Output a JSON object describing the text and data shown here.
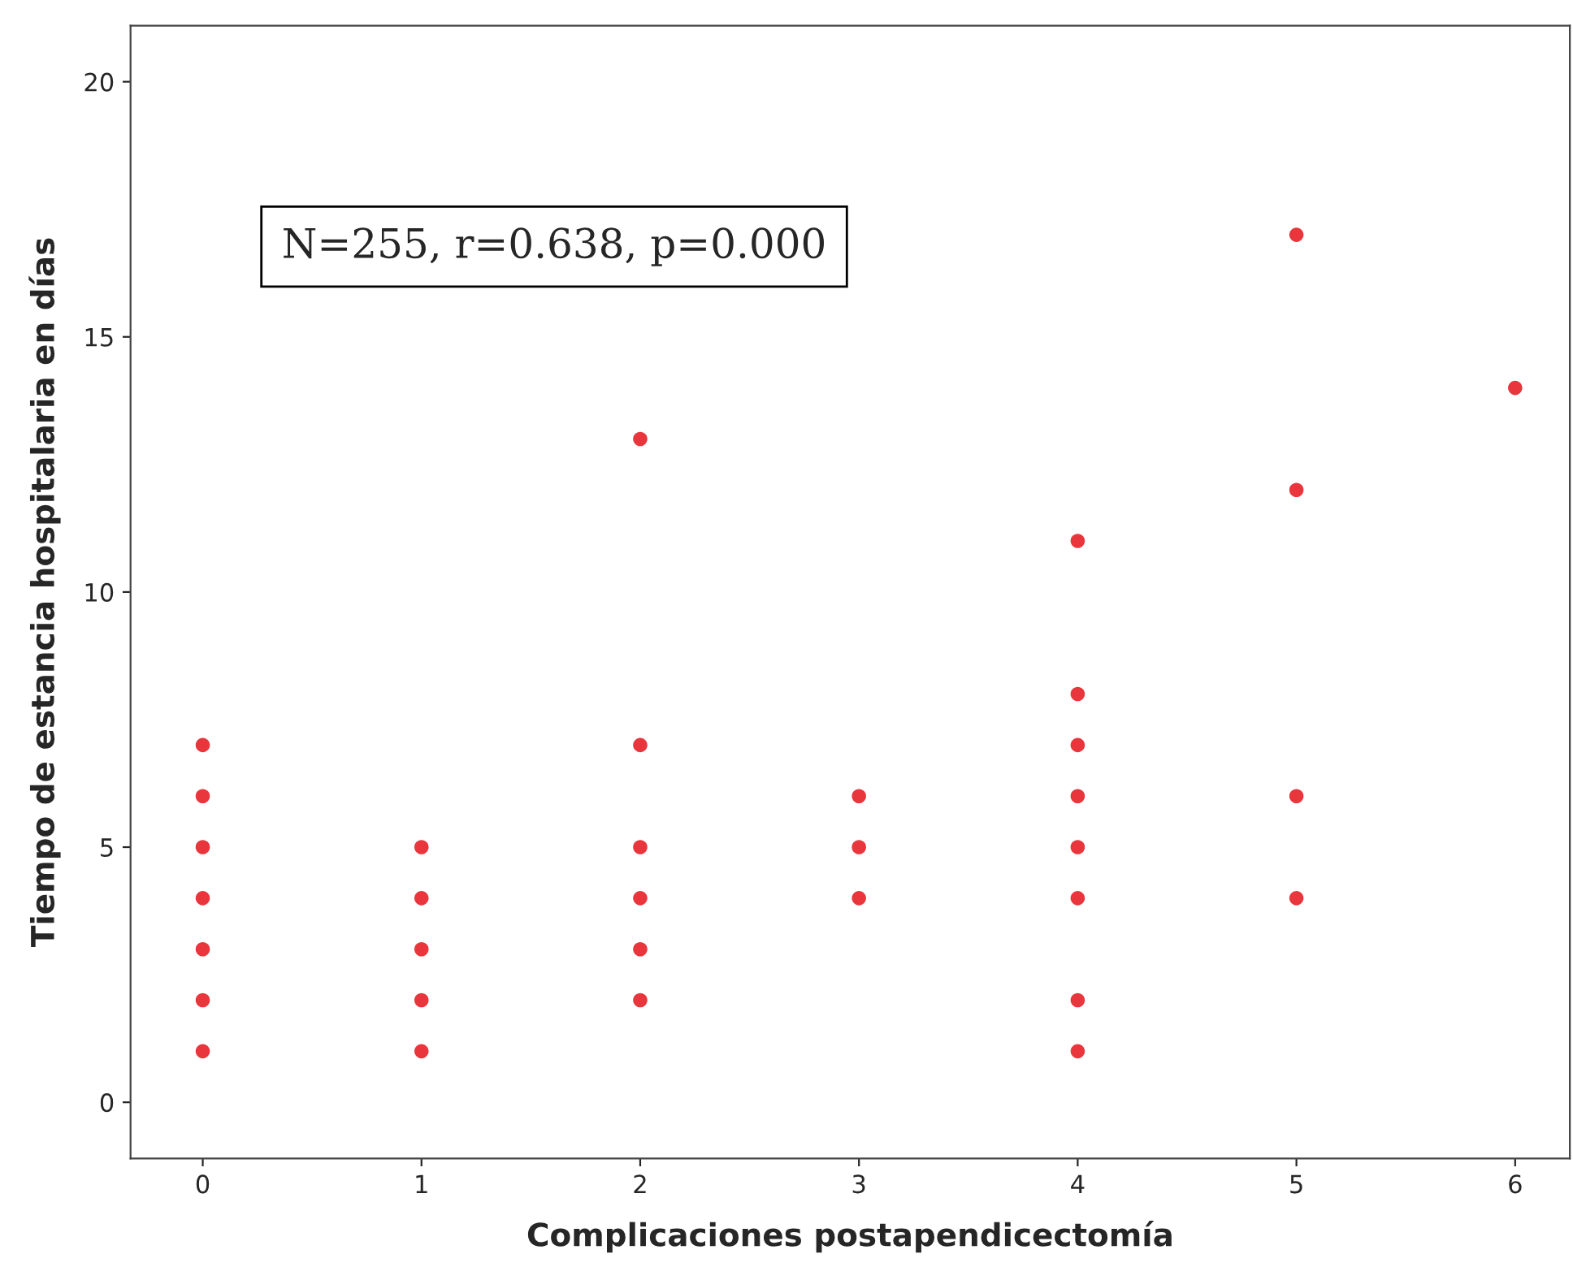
{
  "chart_data": {
    "type": "scatter",
    "xlabel": "Complicaciones postapendicectomía",
    "ylabel": "Tiempo de estancia hospitalaria en días",
    "annotations": [
      "N=255, r=0.638, p=0.000"
    ],
    "series": [
      {
        "color": "#e8363c",
        "x": [
          0,
          0,
          0,
          0,
          0,
          0,
          0,
          1,
          1,
          1,
          1,
          1,
          2,
          2,
          2,
          2,
          2,
          2,
          3,
          3,
          3,
          4,
          4,
          4,
          4,
          4,
          4,
          4,
          4,
          5,
          5,
          5,
          5,
          6
        ],
        "values": [
          1,
          2,
          3,
          4,
          5,
          6,
          7,
          1,
          2,
          3,
          4,
          5,
          2,
          3,
          4,
          5,
          7,
          13,
          4,
          5,
          6,
          1,
          2,
          4,
          5,
          6,
          7,
          8,
          11,
          4,
          6,
          12,
          17,
          14
        ]
      }
    ],
    "xlim": [
      -0.33,
      6.25
    ],
    "ylim": [
      -1.1,
      21.1
    ],
    "xticks": [
      0,
      1,
      2,
      3,
      4,
      5,
      6
    ],
    "yticks": [
      0,
      5,
      10,
      15,
      20
    ],
    "grid": false,
    "marker": "circle",
    "legend": false
  }
}
